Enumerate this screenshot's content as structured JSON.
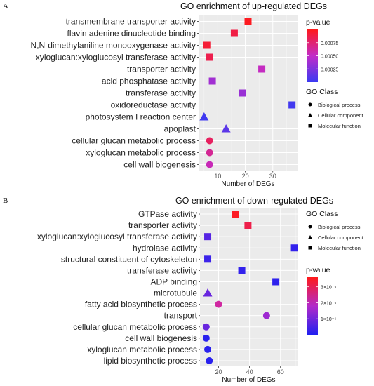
{
  "chart_data": [
    {
      "panel": "A",
      "type": "scatter",
      "title": "GO enrichment of up-regulated DEGs",
      "xlabel": "Number of DEGs",
      "ylabel": "",
      "xlim": [
        3,
        39
      ],
      "xticks": [
        10,
        20,
        30
      ],
      "grid": true,
      "categories": [
        "transmembrane transporter activity",
        "flavin adenine dinucleotide binding",
        "N,N-dimethylaniline monooxygenase activity",
        "xyloglucan:xyloglucosyl transferase activity",
        "transporter activity",
        "acid phosphatase activity",
        "transferase activity",
        "oxidoreductase activity",
        "photosystem I reaction center",
        "apoplast",
        "cellular glucan metabolic process",
        "xyloglucan metabolic process",
        "cell wall biogenesis"
      ],
      "x": [
        21,
        16,
        6,
        7,
        26,
        8,
        19,
        37,
        5,
        13,
        7,
        7,
        7
      ],
      "p_value": [
        0.00098,
        0.00088,
        0.00092,
        0.00085,
        0.00052,
        0.00038,
        0.00035,
        3e-05,
        2e-05,
        0.00012,
        0.0008,
        0.00065,
        0.00055
      ],
      "go_class": [
        "Molecular function",
        "Molecular function",
        "Molecular function",
        "Molecular function",
        "Molecular function",
        "Molecular function",
        "Molecular function",
        "Molecular function",
        "Cellular component",
        "Cellular component",
        "Biological process",
        "Biological process",
        "Biological process"
      ],
      "legend": {
        "color_title": "p-value",
        "color_range": [
          0,
          0.001
        ],
        "color_ticks": [
          0.00075,
          0.0005,
          0.00025
        ],
        "color_tick_labels": [
          "0.00075",
          "0.00050",
          "0.00025"
        ],
        "shape_title": "GO Class",
        "shape_entries": [
          "Biological process",
          "Cellular component",
          "Molecular function"
        ],
        "order": "color-first"
      },
      "colors": {
        "low": "#3a3af2",
        "high": "#ff1a1a",
        "panel_bg": "#ebebeb",
        "grid": "#ffffff"
      }
    },
    {
      "panel": "B",
      "type": "scatter",
      "title": "GO enrichment of down-regulated DEGs",
      "xlabel": "Number of DEGs",
      "ylabel": "",
      "xlim": [
        8,
        71
      ],
      "xticks": [
        20,
        40,
        60
      ],
      "grid": true,
      "categories": [
        "GTPase activity",
        "transporter activity",
        "xyloglucan:xyloglucosyl transferase activity",
        "hydrolase activity",
        "structural constituent of cytoskeleton",
        "transferase activity",
        "ADP binding",
        "microtubule",
        "fatty acid biosynthetic process",
        "transport",
        "cellular glucan metabolic process",
        "cell wall biogenesis",
        "xyloglucan metabolic process",
        "lipid biosynthetic process"
      ],
      "x": [
        31,
        39,
        13,
        69,
        13,
        35,
        57,
        13,
        20,
        51,
        12,
        12,
        13,
        14
      ],
      "p_value": [
        3.5e-06,
        3.1e-06,
        6e-07,
        2e-07,
        3e-07,
        2e-07,
        1.5e-07,
        8e-07,
        2.2e-06,
        1.4e-06,
        8e-07,
        1e-07,
        1e-07,
        1e-07
      ],
      "go_class": [
        "Molecular function",
        "Molecular function",
        "Molecular function",
        "Molecular function",
        "Molecular function",
        "Molecular function",
        "Molecular function",
        "Cellular component",
        "Biological process",
        "Biological process",
        "Biological process",
        "Biological process",
        "Biological process",
        "Biological process"
      ],
      "legend": {
        "color_title": "p-value",
        "color_range": [
          0,
          3.6e-06
        ],
        "color_ticks": [
          3e-06,
          2e-06,
          1e-06
        ],
        "color_tick_labels": [
          "3×10⁻⁶",
          "2×10⁻⁶",
          "1×10⁻⁶"
        ],
        "shape_title": "GO Class",
        "shape_entries": [
          "Biological process",
          "Cellular component",
          "Molecular function"
        ],
        "order": "shape-first"
      },
      "colors": {
        "low": "#2020f0",
        "high": "#ff1a1a",
        "panel_bg": "#ebebeb",
        "grid": "#ffffff"
      }
    }
  ]
}
